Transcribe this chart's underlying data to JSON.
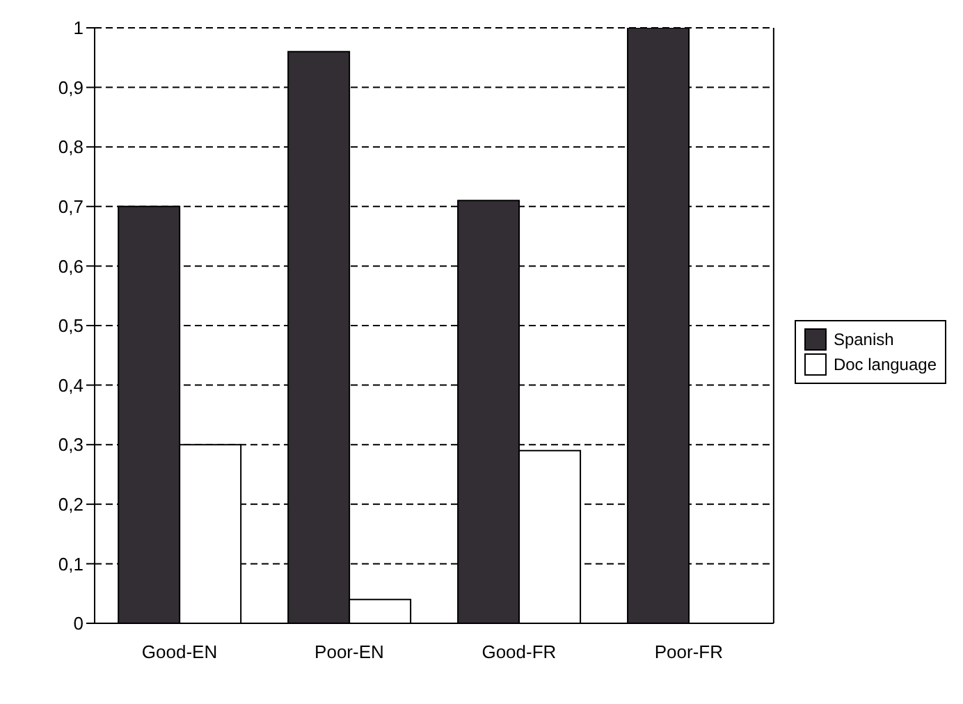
{
  "chart_data": {
    "type": "bar",
    "categories": [
      "Good-EN",
      "Poor-EN",
      "Good-FR",
      "Poor-FR"
    ],
    "series": [
      {
        "name": "Spanish",
        "color": "#332e33",
        "values": [
          0.7,
          0.96,
          0.71,
          1.0
        ]
      },
      {
        "name": "Doc language",
        "color": "#ffffff",
        "values": [
          0.3,
          0.04,
          0.29,
          0
        ]
      }
    ],
    "ylim": [
      0,
      1
    ],
    "yticks": [
      0,
      {
        "value": 0.1,
        "label": "0,1"
      },
      {
        "value": 0.2,
        "label": "0,2"
      },
      {
        "value": 0.3,
        "label": "0,3"
      },
      {
        "value": 0.4,
        "label": "0,4"
      },
      {
        "value": 0.5,
        "label": "0,5"
      },
      {
        "value": 0.6,
        "label": "0,6"
      },
      {
        "value": 0.7,
        "label": "0,7"
      },
      {
        "value": 0.8,
        "label": "0,8"
      },
      {
        "value": 0.9,
        "label": "0,9"
      },
      1
    ],
    "grid": "y",
    "legend": "right"
  }
}
